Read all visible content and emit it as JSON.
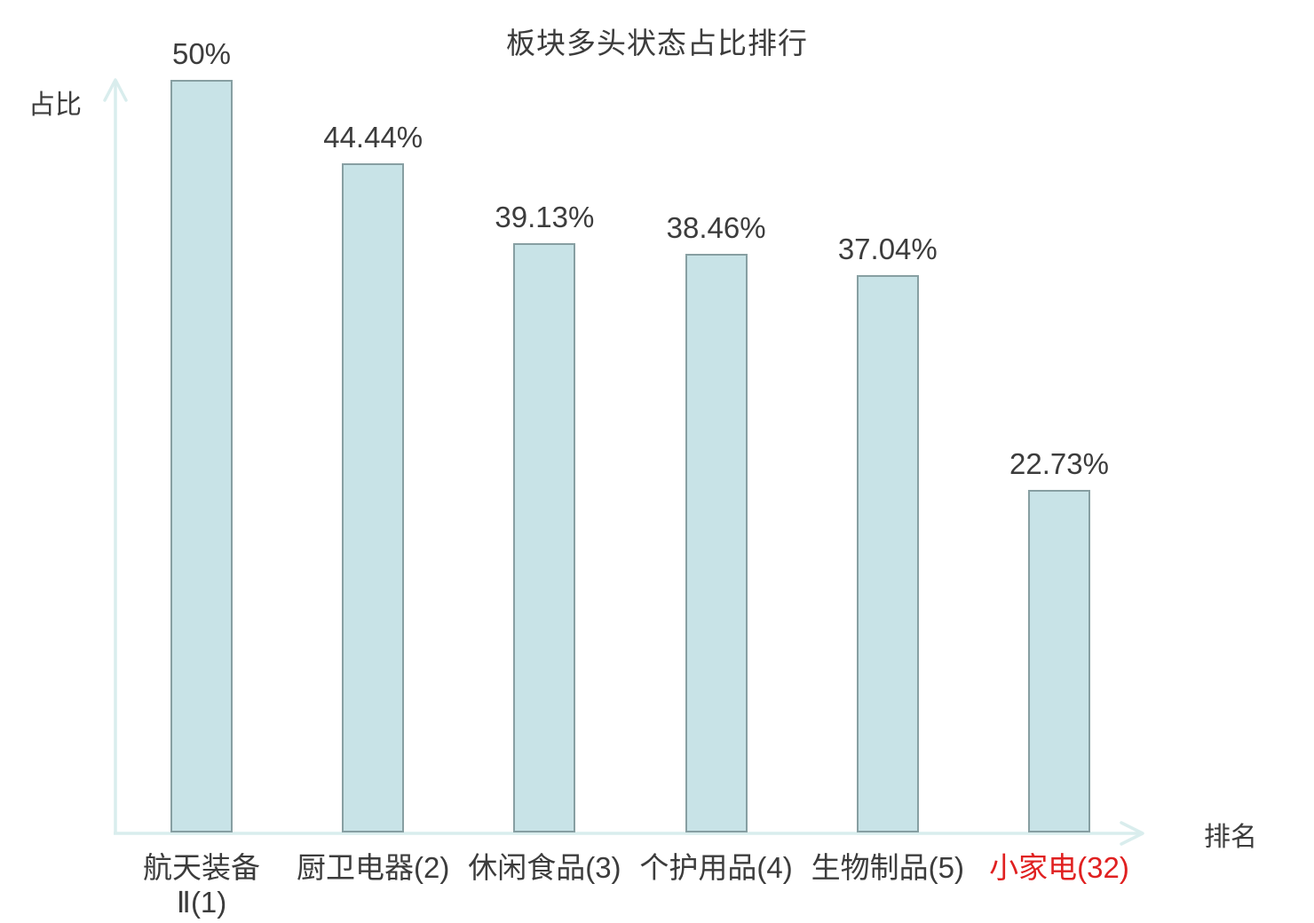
{
  "chart_data": {
    "type": "bar",
    "title": "板块多头状态占比排行",
    "ylabel": "占比",
    "xlabel": "排名",
    "categories": [
      "航天装备\nⅡ(1)",
      "厨卫电器(2)",
      "休闲食品(3)",
      "个护用品(4)",
      "生物制品(5)",
      "小家电(32)"
    ],
    "values": [
      50,
      44.44,
      39.13,
      38.46,
      37.04,
      22.73
    ],
    "value_labels": [
      "50%",
      "44.44%",
      "39.13%",
      "38.46%",
      "37.04%",
      "22.73%"
    ],
    "highlight_index": 5,
    "ylim": [
      0,
      50
    ],
    "grid": false,
    "legend": false
  },
  "colors": {
    "background": "#ffffff",
    "bar_fill": "#c8e3e7",
    "bar_border": "#879fa2",
    "axis": "#d9eded",
    "text": "#3c3c3c",
    "highlight": "#e02020"
  }
}
